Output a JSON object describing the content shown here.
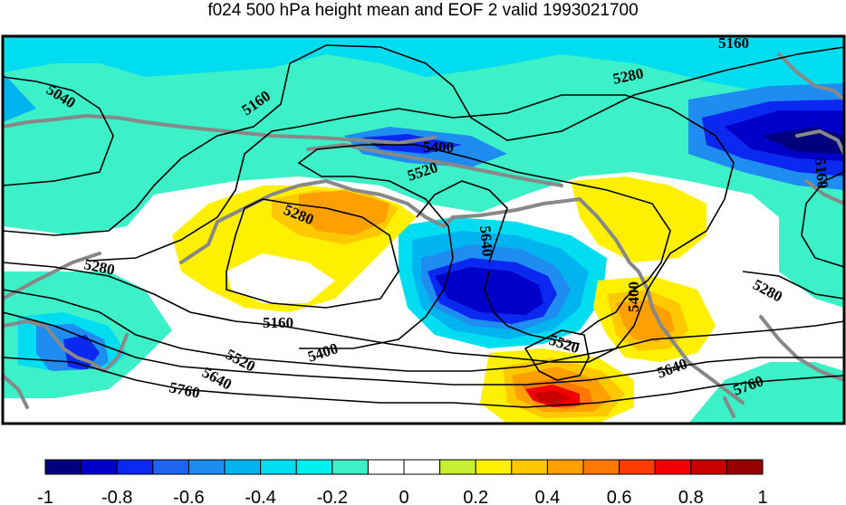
{
  "title": "f024 500 hPa height mean and EOF 2 valid 1993021700",
  "contour_labels": [
    "5040",
    "5160",
    "5160",
    "5160",
    "5280",
    "5280",
    "5280",
    "5280",
    "5400",
    "5400",
    "5400",
    "5520",
    "5520",
    "5520",
    "5640",
    "5640",
    "5640",
    "5760",
    "5760",
    "5160"
  ],
  "colorbar": {
    "colors": [
      "#00007f",
      "#0000c8",
      "#0a28f0",
      "#1e64f0",
      "#1e8cf0",
      "#00b4f0",
      "#00dcf0",
      "#00f0f0",
      "#3cf0c8",
      "#ffffff",
      "#ffffff",
      "#c8f032",
      "#fff000",
      "#ffc800",
      "#ffa000",
      "#ff7800",
      "#ff3c00",
      "#f00000",
      "#c80000",
      "#960000"
    ],
    "tick_labels": [
      "-1",
      "-0.8",
      "-0.6",
      "-0.4",
      "-0.2",
      "0",
      "0.2",
      "0.4",
      "0.6",
      "0.8",
      "1"
    ]
  },
  "colors": {
    "coast": "#888888",
    "contour": "#000000",
    "frame": "#000000"
  }
}
